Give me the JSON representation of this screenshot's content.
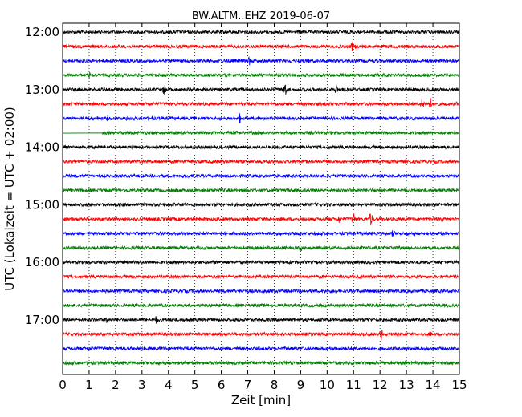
{
  "chart_data": {
    "type": "line",
    "title": "BW.ALTM..EHZ 2019-06-07",
    "xlabel": "Zeit  [min]",
    "ylabel": "UTC (Lokalzeit = UTC + 02:00)",
    "xlim": [
      0,
      15
    ],
    "x_ticks": [
      "0",
      "1",
      "2",
      "3",
      "4",
      "5",
      "6",
      "7",
      "8",
      "9",
      "10",
      "11",
      "12",
      "13",
      "14",
      "15"
    ],
    "y_ticks": [
      {
        "label": "12:00",
        "row": 0
      },
      {
        "label": "13:00",
        "row": 4
      },
      {
        "label": "14:00",
        "row": 8
      },
      {
        "label": "15:00",
        "row": 12
      },
      {
        "label": "16:00",
        "row": 16
      },
      {
        "label": "17:00",
        "row": 20
      }
    ],
    "grid": "vertical dotted at each minute",
    "row_interval_minutes": 15,
    "colors": [
      "#000000",
      "#ff0000",
      "#0000ff",
      "#007f00"
    ],
    "series": [
      {
        "start": "12:00",
        "color": "#000000",
        "events": [
          [
            10.9,
            4
          ],
          [
            12,
            3
          ],
          [
            12.45,
            5
          ]
        ]
      },
      {
        "start": "12:15",
        "color": "#ff0000",
        "events": [
          [
            10.95,
            9
          ],
          [
            11.1,
            4
          ],
          [
            12.6,
            2
          ]
        ]
      },
      {
        "start": "12:30",
        "color": "#0000ff",
        "events": [
          [
            7.05,
            7
          ],
          [
            7.25,
            3
          ],
          [
            8.9,
            4
          ],
          [
            9.1,
            5
          ],
          [
            9.3,
            3
          ]
        ]
      },
      {
        "start": "12:45",
        "color": "#007f00",
        "events": [
          [
            1,
            6
          ],
          [
            5.1,
            2
          ],
          [
            10.1,
            2
          ]
        ]
      },
      {
        "start": "13:00",
        "color": "#000000",
        "events": [
          [
            3.85,
            9
          ],
          [
            8.4,
            11
          ],
          [
            10.35,
            8
          ],
          [
            8.9,
            2
          ]
        ]
      },
      {
        "start": "13:15",
        "color": "#ff0000",
        "events": [
          [
            13.6,
            10
          ],
          [
            13.9,
            9
          ],
          [
            14.2,
            3
          ],
          [
            14.9,
            3
          ]
        ]
      },
      {
        "start": "13:30",
        "color": "#0000ff",
        "events": [
          [
            1.3,
            4
          ],
          [
            1.7,
            4
          ],
          [
            2.4,
            3
          ],
          [
            3.4,
            4
          ],
          [
            3.7,
            3
          ],
          [
            4.1,
            3
          ],
          [
            6.7,
            7
          ],
          [
            7.7,
            4
          ],
          [
            12.2,
            2
          ]
        ]
      },
      {
        "start": "13:45",
        "color": "#007f00",
        "start_min": 1.5,
        "events": [
          [
            6.8,
            2
          ],
          [
            8.2,
            2
          ]
        ]
      },
      {
        "start": "14:00",
        "color": "#000000",
        "events": [
          [
            6.3,
            2
          ],
          [
            12.9,
            2
          ]
        ]
      },
      {
        "start": "14:15",
        "color": "#ff0000",
        "events": [
          [
            3.9,
            3
          ],
          [
            4.3,
            3
          ],
          [
            11.5,
            2
          ]
        ]
      },
      {
        "start": "14:30",
        "color": "#0000ff",
        "events": [
          [
            0.2,
            3
          ],
          [
            2.5,
            2
          ]
        ]
      },
      {
        "start": "14:45",
        "color": "#007f00",
        "events": [
          [
            3.0,
            2
          ],
          [
            7.5,
            2
          ]
        ]
      },
      {
        "start": "15:00",
        "color": "#000000",
        "events": [
          [
            5.3,
            2
          ],
          [
            10.4,
            2
          ]
        ]
      },
      {
        "start": "15:15",
        "color": "#ff0000",
        "events": [
          [
            10.45,
            6
          ],
          [
            11.0,
            10
          ],
          [
            11.65,
            11
          ],
          [
            14.35,
            4
          ]
        ]
      },
      {
        "start": "15:30",
        "color": "#0000ff",
        "events": [
          [
            12.5,
            6
          ],
          [
            12.65,
            4
          ],
          [
            13.3,
            3
          ],
          [
            14.4,
            3
          ]
        ]
      },
      {
        "start": "15:45",
        "color": "#007f00",
        "events": [
          [
            9.0,
            6
          ]
        ]
      },
      {
        "start": "16:00",
        "color": "#000000",
        "events": [
          [
            1.5,
            3
          ],
          [
            8.6,
            3
          ],
          [
            10.4,
            2
          ]
        ]
      },
      {
        "start": "16:15",
        "color": "#ff0000",
        "events": [
          [
            9.5,
            2
          ]
        ]
      },
      {
        "start": "16:30",
        "color": "#0000ff",
        "events": [
          [
            9.0,
            2
          ]
        ]
      },
      {
        "start": "16:45",
        "color": "#007f00",
        "events": [
          [
            6.0,
            2
          ]
        ]
      },
      {
        "start": "17:00",
        "color": "#000000",
        "events": [
          [
            1.65,
            6
          ],
          [
            3.55,
            6
          ],
          [
            5.8,
            3
          ],
          [
            13.5,
            2
          ]
        ]
      },
      {
        "start": "17:15",
        "color": "#ff0000",
        "events": [
          [
            11.35,
            3
          ],
          [
            12.05,
            8
          ],
          [
            13.9,
            4
          ]
        ]
      },
      {
        "start": "17:30",
        "color": "#0000ff",
        "events": []
      },
      {
        "start": "17:45",
        "color": "#007f00",
        "events": []
      }
    ]
  }
}
